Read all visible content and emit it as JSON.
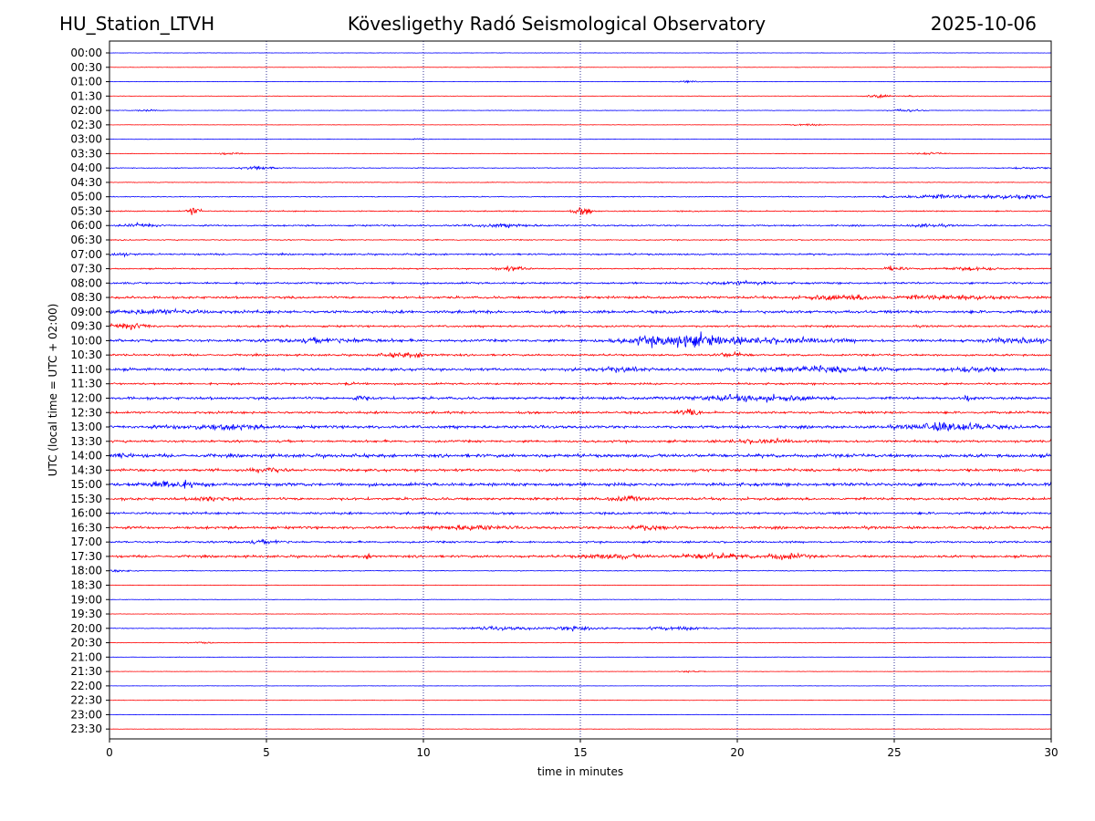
{
  "header": {
    "station": "HU_Station_LTVH",
    "observatory": "Kövesligethy Radó Seismological Observatory",
    "date": "2025-10-06"
  },
  "colors": {
    "even_row": "#0000ff",
    "odd_row": "#ff0000",
    "grid": "#000080"
  },
  "chart_data": {
    "type": "line",
    "title": "Kövesligethy Radó Seismological Observatory",
    "xlabel": "time in minutes",
    "ylabel": "UTC (local time = UTC + 02:00)",
    "xlim": [
      0,
      30
    ],
    "xticks": [
      "0",
      "5",
      "10",
      "15",
      "20",
      "25",
      "30"
    ],
    "grid": "vertical dotted lines at 5, 10, 15, 20, 25",
    "rows": [
      {
        "label": "00:00",
        "level": 0.3,
        "events": []
      },
      {
        "label": "00:30",
        "level": 0.3,
        "events": []
      },
      {
        "label": "01:00",
        "level": 0.3,
        "events": [
          {
            "t": 18.5,
            "a": 1.5,
            "w": 0.5
          }
        ]
      },
      {
        "label": "01:30",
        "level": 0.3,
        "events": [
          {
            "t": 24.5,
            "a": 2.5,
            "w": 0.4
          },
          {
            "t": 26.0,
            "a": 1.2,
            "w": 0.8
          }
        ]
      },
      {
        "label": "02:00",
        "level": 0.4,
        "events": [
          {
            "t": 1.2,
            "a": 1.2,
            "w": 0.4
          },
          {
            "t": 25.4,
            "a": 2,
            "w": 0.5
          }
        ]
      },
      {
        "label": "02:30",
        "level": 0.3,
        "events": [
          {
            "t": 22.2,
            "a": 1.5,
            "w": 0.5
          }
        ]
      },
      {
        "label": "03:00",
        "level": 0.3,
        "events": [
          {
            "t": 9.8,
            "a": 1.2,
            "w": 0.3
          }
        ]
      },
      {
        "label": "03:30",
        "level": 0.4,
        "events": [
          {
            "t": 3.8,
            "a": 1.5,
            "w": 0.4
          },
          {
            "t": 26.2,
            "a": 1.5,
            "w": 0.5
          }
        ]
      },
      {
        "label": "04:00",
        "level": 0.6,
        "events": [
          {
            "t": 4.7,
            "a": 3.5,
            "w": 0.5
          },
          {
            "t": 29.2,
            "a": 1.5,
            "w": 0.6
          }
        ]
      },
      {
        "label": "04:30",
        "level": 0.5,
        "events": []
      },
      {
        "label": "05:00",
        "level": 0.7,
        "events": [
          {
            "t": 26.0,
            "a": 3,
            "w": 1.2
          },
          {
            "t": 28.8,
            "a": 3.5,
            "w": 1.5
          }
        ]
      },
      {
        "label": "05:30",
        "level": 0.9,
        "events": [
          {
            "t": 2.7,
            "a": 7,
            "w": 0.2
          },
          {
            "t": 15.1,
            "a": 6,
            "w": 0.3
          }
        ]
      },
      {
        "label": "06:00",
        "level": 1.2,
        "events": [
          {
            "t": 1.0,
            "a": 2,
            "w": 0.5
          },
          {
            "t": 12.5,
            "a": 2,
            "w": 1
          },
          {
            "t": 26.0,
            "a": 2,
            "w": 0.6
          }
        ]
      },
      {
        "label": "06:30",
        "level": 0.8,
        "events": []
      },
      {
        "label": "07:00",
        "level": 1.3,
        "events": [
          {
            "t": 0.3,
            "a": 2,
            "w": 0.4
          }
        ]
      },
      {
        "label": "07:30",
        "level": 1.0,
        "events": [
          {
            "t": 12.8,
            "a": 3,
            "w": 0.5
          },
          {
            "t": 25.0,
            "a": 3.5,
            "w": 0.3
          },
          {
            "t": 27.5,
            "a": 2.5,
            "w": 1
          }
        ]
      },
      {
        "label": "08:00",
        "level": 1.5,
        "events": [
          {
            "t": 20.0,
            "a": 2.5,
            "w": 1
          }
        ]
      },
      {
        "label": "08:30",
        "level": 1.8,
        "events": [
          {
            "t": 23.5,
            "a": 3,
            "w": 1.5
          },
          {
            "t": 27.0,
            "a": 3,
            "w": 1.5
          }
        ]
      },
      {
        "label": "09:00",
        "level": 2.2,
        "events": [
          {
            "t": 1.5,
            "a": 2.5,
            "w": 1.5
          }
        ]
      },
      {
        "label": "09:30",
        "level": 1.5,
        "events": [
          {
            "t": 0.7,
            "a": 4,
            "w": 0.6
          }
        ]
      },
      {
        "label": "10:00",
        "level": 2.0,
        "events": [
          {
            "t": 18.2,
            "a": 9,
            "w": 1.6
          },
          {
            "t": 21.5,
            "a": 3,
            "w": 2
          },
          {
            "t": 29.0,
            "a": 4,
            "w": 1
          },
          {
            "t": 7.0,
            "a": 3,
            "w": 1.5
          }
        ]
      },
      {
        "label": "10:30",
        "level": 1.5,
        "events": [
          {
            "t": 9.5,
            "a": 3,
            "w": 0.8
          },
          {
            "t": 19.8,
            "a": 3,
            "w": 0.5
          }
        ]
      },
      {
        "label": "11:00",
        "level": 2.0,
        "events": [
          {
            "t": 16.0,
            "a": 3,
            "w": 1
          },
          {
            "t": 22.5,
            "a": 3.5,
            "w": 2
          },
          {
            "t": 27.5,
            "a": 4,
            "w": 0.8
          }
        ]
      },
      {
        "label": "11:30",
        "level": 1.5,
        "events": [
          {
            "t": 7.7,
            "a": 3,
            "w": 0.2
          }
        ]
      },
      {
        "label": "12:00",
        "level": 2.0,
        "events": [
          {
            "t": 20.5,
            "a": 4,
            "w": 1.8
          },
          {
            "t": 27.3,
            "a": 4,
            "w": 0.2
          },
          {
            "t": 8.0,
            "a": 3,
            "w": 0.3
          }
        ]
      },
      {
        "label": "12:30",
        "level": 1.8,
        "events": [
          {
            "t": 18.5,
            "a": 4,
            "w": 0.4
          }
        ]
      },
      {
        "label": "13:00",
        "level": 2.2,
        "events": [
          {
            "t": 26.8,
            "a": 6,
            "w": 1.2
          },
          {
            "t": 3.5,
            "a": 3,
            "w": 1.5
          }
        ]
      },
      {
        "label": "13:30",
        "level": 1.8,
        "events": [
          {
            "t": 20.8,
            "a": 2.5,
            "w": 1
          }
        ]
      },
      {
        "label": "14:00",
        "level": 2.5,
        "events": [
          {
            "t": 0.3,
            "a": 3,
            "w": 0.4
          }
        ]
      },
      {
        "label": "14:30",
        "level": 2.0,
        "events": [
          {
            "t": 5.0,
            "a": 3,
            "w": 0.5
          }
        ]
      },
      {
        "label": "15:00",
        "level": 2.5,
        "events": [
          {
            "t": 2.0,
            "a": 5,
            "w": 0.8
          }
        ]
      },
      {
        "label": "15:30",
        "level": 2.0,
        "events": [
          {
            "t": 3.2,
            "a": 3,
            "w": 0.5
          },
          {
            "t": 16.5,
            "a": 3,
            "w": 0.5
          }
        ]
      },
      {
        "label": "16:00",
        "level": 1.8,
        "events": []
      },
      {
        "label": "16:30",
        "level": 2.0,
        "events": [
          {
            "t": 11.5,
            "a": 3,
            "w": 1
          },
          {
            "t": 17.0,
            "a": 3,
            "w": 0.8
          }
        ]
      },
      {
        "label": "17:00",
        "level": 1.5,
        "events": [
          {
            "t": 5.0,
            "a": 2,
            "w": 0.8
          }
        ]
      },
      {
        "label": "17:30",
        "level": 1.8,
        "events": [
          {
            "t": 16.0,
            "a": 3,
            "w": 1
          },
          {
            "t": 19.2,
            "a": 4,
            "w": 1
          },
          {
            "t": 21.5,
            "a": 4.5,
            "w": 0.6
          },
          {
            "t": 8.3,
            "a": 3,
            "w": 0.2
          }
        ]
      },
      {
        "label": "18:00",
        "level": 0.6,
        "events": [
          {
            "t": 0.3,
            "a": 1.5,
            "w": 0.5
          }
        ]
      },
      {
        "label": "18:30",
        "level": 0.4,
        "events": []
      },
      {
        "label": "19:00",
        "level": 0.4,
        "events": []
      },
      {
        "label": "19:30",
        "level": 0.4,
        "events": []
      },
      {
        "label": "20:00",
        "level": 0.6,
        "events": [
          {
            "t": 15.0,
            "a": 4,
            "w": 0.8
          },
          {
            "t": 12.5,
            "a": 2.5,
            "w": 1.2
          },
          {
            "t": 18.0,
            "a": 2.5,
            "w": 1.2
          }
        ]
      },
      {
        "label": "20:30",
        "level": 0.4,
        "events": [
          {
            "t": 3.0,
            "a": 1.2,
            "w": 0.5
          }
        ]
      },
      {
        "label": "21:00",
        "level": 0.3,
        "events": []
      },
      {
        "label": "21:30",
        "level": 0.3,
        "events": [
          {
            "t": 18.5,
            "a": 1.2,
            "w": 0.4
          }
        ]
      },
      {
        "label": "22:00",
        "level": 0.3,
        "events": []
      },
      {
        "label": "22:30",
        "level": 0.3,
        "events": []
      },
      {
        "label": "23:00",
        "level": 0.3,
        "events": []
      },
      {
        "label": "23:30",
        "level": 0.3,
        "events": []
      }
    ]
  }
}
